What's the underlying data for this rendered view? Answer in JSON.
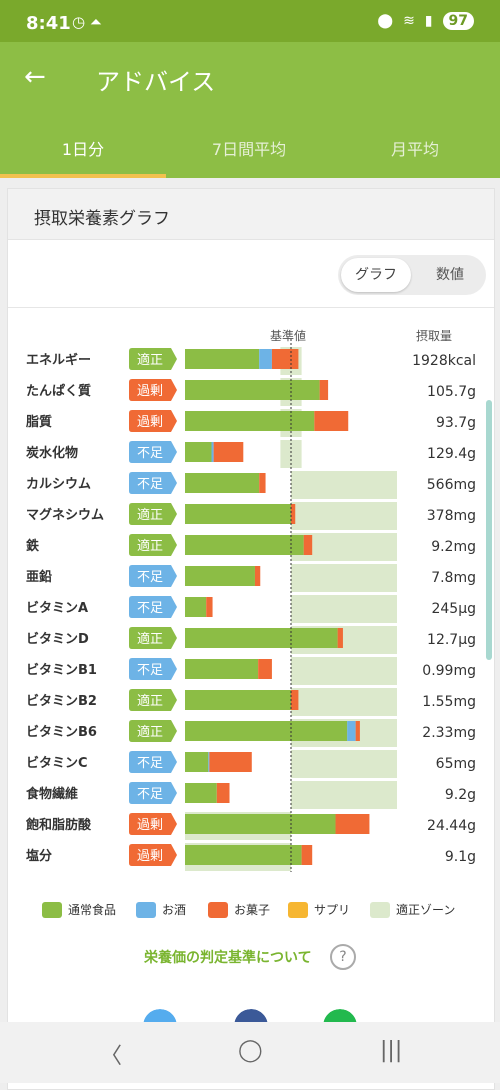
{
  "status": {
    "time": "8:41",
    "battery": "97"
  },
  "app": {
    "title": "アドバイス"
  },
  "tabs": [
    "1日分",
    "7日間平均",
    "月平均"
  ],
  "card": {
    "title": "摂取栄養素グラフ"
  },
  "toggle": {
    "graph": "グラフ",
    "value": "数値"
  },
  "table_header": {
    "standard": "基準値",
    "intake": "摂取量"
  },
  "legend": [
    {
      "label": "通常食品",
      "color": "#8cbd45"
    },
    {
      "label": "お酒",
      "color": "#6db3e6"
    },
    {
      "label": "お菓子",
      "color": "#f06a35"
    },
    {
      "label": "サプリ",
      "color": "#f6b632"
    },
    {
      "label": "適正ゾーン",
      "color": "#dce9cc"
    }
  ],
  "note": "栄養価の判定基準について",
  "status_colors": {
    "適正": "#8cbd45",
    "過剰": "#f06a35",
    "不足": "#6db3e6"
  },
  "chart_data": {
    "type": "bar",
    "categories": [
      "エネルギー",
      "たんぱく質",
      "脂質",
      "炭水化物",
      "カルシウム",
      "マグネシウム",
      "鉄",
      "亜鉛",
      "ビタミンA",
      "ビタミンD",
      "ビタミンB1",
      "ビタミンB2",
      "ビタミンB6",
      "ビタミンC",
      "食物繊維",
      "飽和脂肪酸",
      "塩分"
    ],
    "status": [
      "適正",
      "過剰",
      "過剰",
      "不足",
      "不足",
      "適正",
      "適正",
      "不足",
      "不足",
      "適正",
      "不足",
      "適正",
      "適正",
      "不足",
      "不足",
      "過剰",
      "過剰"
    ],
    "values_text": [
      "1928kcal",
      "105.7g",
      "93.7g",
      "129.4g",
      "566mg",
      "378mg",
      "9.2mg",
      "7.8mg",
      "245μg",
      "12.7μg",
      "0.99mg",
      "1.55mg",
      "2.33mg",
      "65mg",
      "9.2g",
      "24.44g",
      "9.1g"
    ],
    "series": [
      {
        "name": "通常食品",
        "values": [
          0.7,
          1.27,
          1.22,
          0.25,
          0.7,
          1.0,
          1.12,
          0.66,
          0.2,
          1.44,
          0.69,
          1.0,
          1.53,
          0.22,
          0.3,
          1.42,
          1.1
        ]
      },
      {
        "name": "お酒",
        "values": [
          0.12,
          0,
          0,
          0.02,
          0,
          0,
          0,
          0,
          0,
          0,
          0,
          0,
          0.08,
          0.01,
          0,
          0,
          0
        ]
      },
      {
        "name": "お菓子",
        "values": [
          0.25,
          0.08,
          0.32,
          0.28,
          0.06,
          0.04,
          0.08,
          0.05,
          0.06,
          0.05,
          0.13,
          0.07,
          0.04,
          0.4,
          0.12,
          0.32,
          0.1
        ]
      },
      {
        "name": "サプリ",
        "values": [
          0,
          0,
          0,
          0,
          0,
          0,
          0,
          0,
          0,
          0,
          0,
          0,
          0,
          0,
          0,
          0,
          0
        ]
      }
    ],
    "zone": [
      [
        0.9,
        1.1
      ],
      [
        0.9,
        1.1
      ],
      [
        0.9,
        1.1
      ],
      [
        0.9,
        1.1
      ],
      [
        1.0,
        2.0
      ],
      [
        1.0,
        2.0
      ],
      [
        1.0,
        2.0
      ],
      [
        1.0,
        2.0
      ],
      [
        1.0,
        2.0
      ],
      [
        1.0,
        2.0
      ],
      [
        1.0,
        2.0
      ],
      [
        1.0,
        2.0
      ],
      [
        1.0,
        2.0
      ],
      [
        1.0,
        2.0
      ],
      [
        1.0,
        2.0
      ],
      [
        0,
        1.0
      ],
      [
        0,
        1.0
      ]
    ],
    "reference": 1.0
  }
}
